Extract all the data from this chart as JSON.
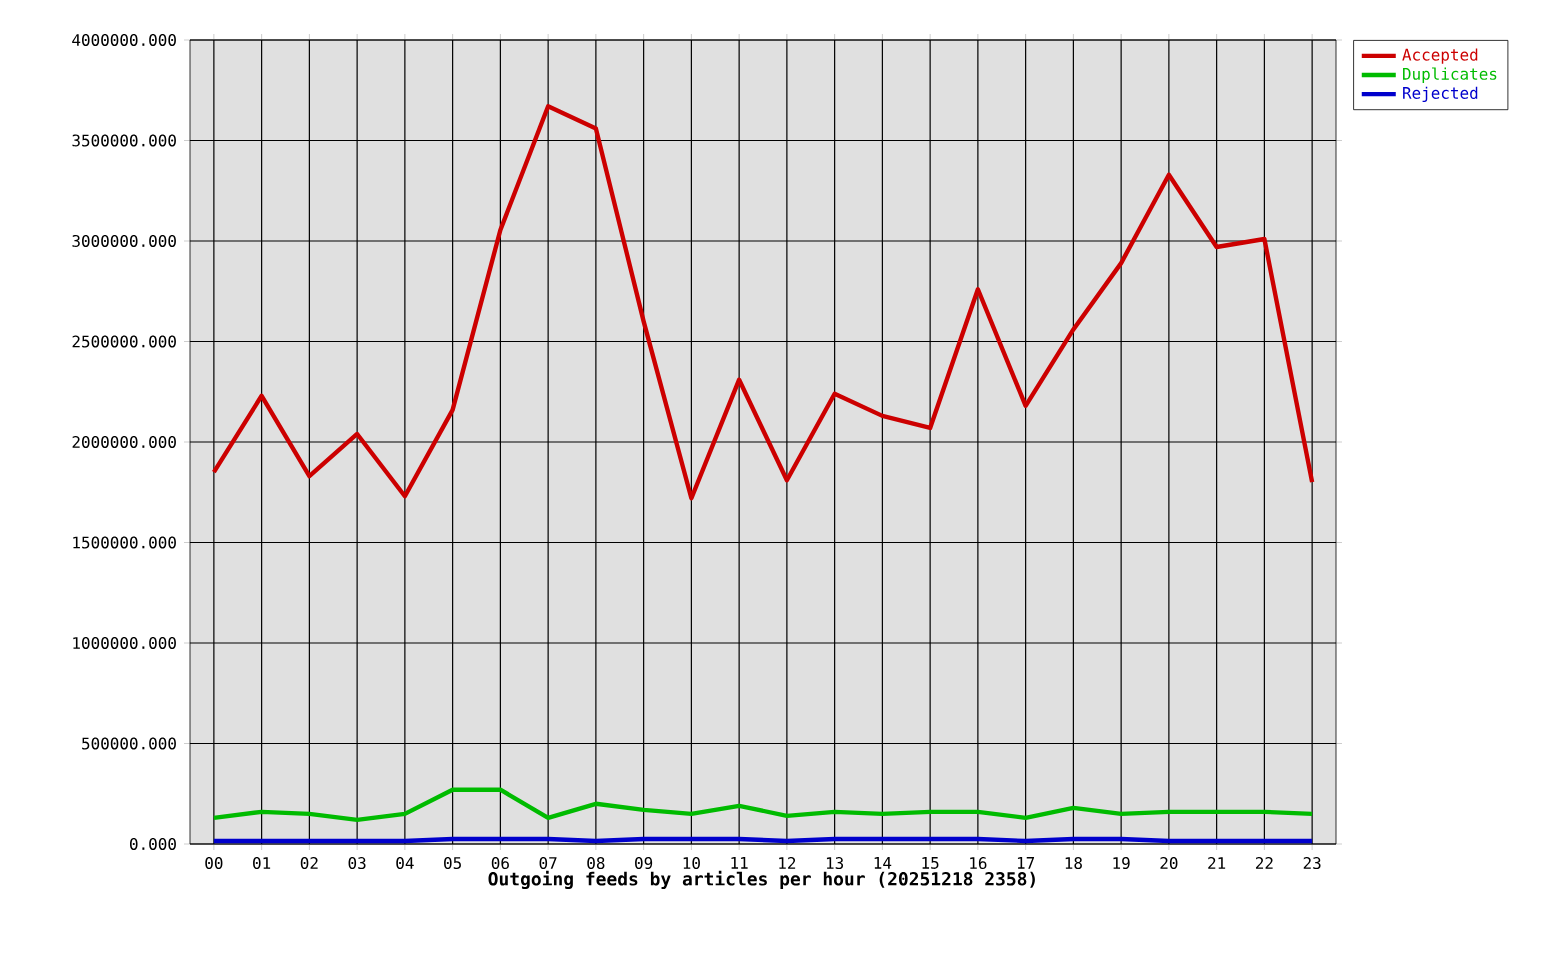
{
  "chart_data": {
    "type": "line",
    "xlabel": "Outgoing feeds by articles per hour (20251218 2358)",
    "categories": [
      "00",
      "01",
      "02",
      "03",
      "04",
      "05",
      "06",
      "07",
      "08",
      "09",
      "10",
      "11",
      "12",
      "13",
      "14",
      "15",
      "16",
      "17",
      "18",
      "19",
      "20",
      "21",
      "22",
      "23"
    ],
    "series": [
      {
        "name": "Accepted",
        "color": "#cc0000",
        "values": [
          1850000,
          2230000,
          1830000,
          2040000,
          1730000,
          2160000,
          3055000,
          3670000,
          3560000,
          2600000,
          1720000,
          2310000,
          1810000,
          2240000,
          2130000,
          2070000,
          2760000,
          2180000,
          2560000,
          2890000,
          3330000,
          2970000,
          3010000,
          1800000
        ]
      },
      {
        "name": "Duplicates",
        "color": "#00bb00",
        "values": [
          130000,
          160000,
          150000,
          120000,
          150000,
          270000,
          270000,
          130000,
          200000,
          170000,
          150000,
          190000,
          140000,
          160000,
          150000,
          160000,
          160000,
          130000,
          180000,
          150000,
          160000,
          160000,
          160000,
          150000
        ]
      },
      {
        "name": "Rejected",
        "color": "#0000cc",
        "values": [
          15000,
          15000,
          15000,
          15000,
          15000,
          25000,
          25000,
          25000,
          15000,
          25000,
          25000,
          25000,
          15000,
          25000,
          25000,
          25000,
          25000,
          15000,
          25000,
          25000,
          15000,
          15000,
          15000,
          15000
        ]
      }
    ],
    "ylim": [
      0,
      4000000
    ],
    "yticks": [
      {
        "value": 0,
        "label": "0.000"
      },
      {
        "value": 500000,
        "label": "500000.000"
      },
      {
        "value": 1000000,
        "label": "1000000.000"
      },
      {
        "value": 1500000,
        "label": "1500000.000"
      },
      {
        "value": 2000000,
        "label": "2000000.000"
      },
      {
        "value": 2500000,
        "label": "2500000.000"
      },
      {
        "value": 3000000,
        "label": "3000000.000"
      },
      {
        "value": 3500000,
        "label": "3500000.000"
      },
      {
        "value": 4000000,
        "label": "4000000.000"
      }
    ],
    "grid": true,
    "legend": "top right",
    "marker": "none",
    "line_style": "solid"
  }
}
